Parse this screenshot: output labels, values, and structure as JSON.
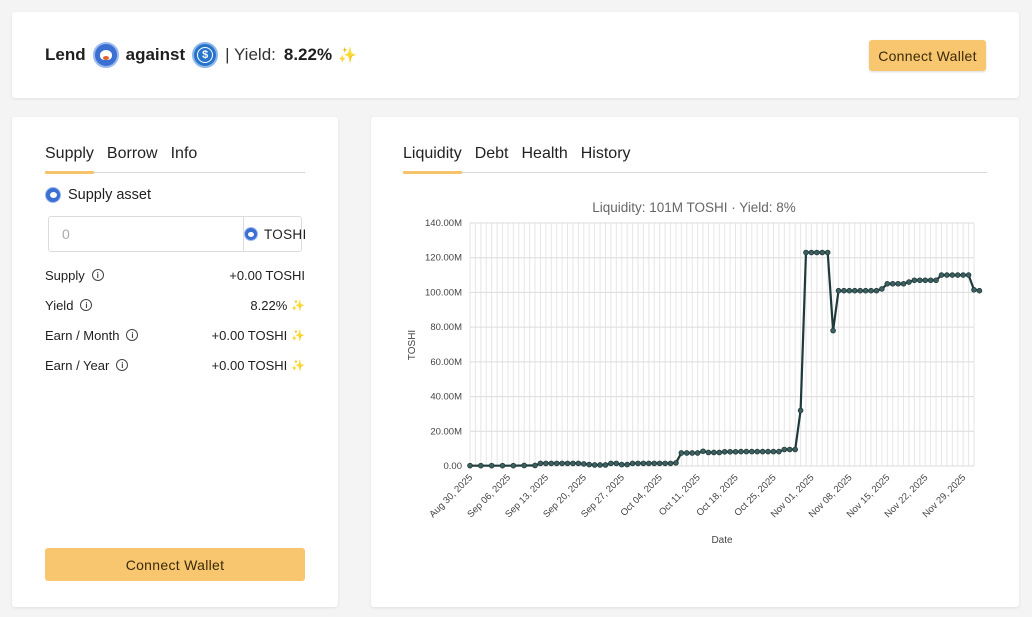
{
  "header": {
    "lend_label": "Lend",
    "against_label": "against",
    "yield_prefix": "| Yield:",
    "yield_value": "8.22%",
    "sparkle": "✨",
    "connect_wallet": "Connect Wallet",
    "asset_icon": "toshi-icon",
    "collateral_icon": "usdc-icon"
  },
  "left_panel": {
    "tabs": [
      {
        "label": "Supply",
        "active": true
      },
      {
        "label": "Borrow",
        "active": false
      },
      {
        "label": "Info",
        "active": false
      }
    ],
    "supply_asset_label": "Supply asset",
    "amount_placeholder": "0",
    "amount_token": "TOSHI",
    "stats": [
      {
        "label": "Supply",
        "value": "+0.00 TOSHI",
        "sparkle": false
      },
      {
        "label": "Yield",
        "value": "8.22%",
        "sparkle": true
      },
      {
        "label": "Earn / Month",
        "value": "+0.00 TOSHI",
        "sparkle": true
      },
      {
        "label": "Earn / Year",
        "value": "+0.00 TOSHI",
        "sparkle": true
      }
    ],
    "connect_wallet": "Connect Wallet"
  },
  "right_panel": {
    "tabs": [
      {
        "label": "Liquidity",
        "active": true
      },
      {
        "label": "Debt",
        "active": false
      },
      {
        "label": "Health",
        "active": false
      },
      {
        "label": "History",
        "active": false
      }
    ]
  },
  "colors": {
    "accent": "#f8c66f",
    "line": "#1f3a3a"
  },
  "chart_data": {
    "type": "line",
    "title": "Liquidity: 101M TOSHI · Yield: 8%",
    "xlabel": "Date",
    "ylabel": "TOSHI",
    "ylim": [
      0,
      140
    ],
    "y_ticks": [
      "0.00",
      "20.00M",
      "40.00M",
      "60.00M",
      "80.00M",
      "100.00M",
      "120.00M",
      "140.00M"
    ],
    "x_ticks": [
      "Aug 30, 2025",
      "Sep 06, 2025",
      "Sep 13, 2025",
      "Sep 20, 2025",
      "Sep 27, 2025",
      "Oct 04, 2025",
      "Oct 11, 2025",
      "Oct 18, 2025",
      "Oct 25, 2025",
      "Nov 01, 2025",
      "Nov 08, 2025",
      "Nov 15, 2025",
      "Nov 22, 2025",
      "Nov 29, 2025"
    ],
    "x_range": [
      "2025-08-30",
      "2025-12-01"
    ],
    "grid": true,
    "series": [
      {
        "unit": "M TOSHI",
        "points": [
          [
            "2025-08-30",
            0.2
          ],
          [
            "2025-09-01",
            0.2
          ],
          [
            "2025-09-03",
            0.2
          ],
          [
            "2025-09-05",
            0.2
          ],
          [
            "2025-09-07",
            0.2
          ],
          [
            "2025-09-09",
            0.3
          ],
          [
            "2025-09-11",
            0.3
          ],
          [
            "2025-09-12",
            1.5
          ],
          [
            "2025-09-13",
            1.5
          ],
          [
            "2025-09-14",
            1.5
          ],
          [
            "2025-09-15",
            1.5
          ],
          [
            "2025-09-16",
            1.5
          ],
          [
            "2025-09-17",
            1.5
          ],
          [
            "2025-09-18",
            1.5
          ],
          [
            "2025-09-19",
            1.5
          ],
          [
            "2025-09-20",
            1.2
          ],
          [
            "2025-09-21",
            0.8
          ],
          [
            "2025-09-22",
            0.6
          ],
          [
            "2025-09-23",
            0.6
          ],
          [
            "2025-09-24",
            0.6
          ],
          [
            "2025-09-25",
            1.5
          ],
          [
            "2025-09-26",
            1.5
          ],
          [
            "2025-09-27",
            0.8
          ],
          [
            "2025-09-28",
            0.8
          ],
          [
            "2025-09-29",
            1.5
          ],
          [
            "2025-09-30",
            1.5
          ],
          [
            "2025-10-01",
            1.5
          ],
          [
            "2025-10-02",
            1.5
          ],
          [
            "2025-10-03",
            1.5
          ],
          [
            "2025-10-04",
            1.5
          ],
          [
            "2025-10-05",
            1.5
          ],
          [
            "2025-10-06",
            1.5
          ],
          [
            "2025-10-07",
            1.8
          ],
          [
            "2025-10-08",
            7.5
          ],
          [
            "2025-10-09",
            7.5
          ],
          [
            "2025-10-10",
            7.5
          ],
          [
            "2025-10-11",
            7.5
          ],
          [
            "2025-10-12",
            8.5
          ],
          [
            "2025-10-13",
            7.8
          ],
          [
            "2025-10-14",
            7.8
          ],
          [
            "2025-10-15",
            7.8
          ],
          [
            "2025-10-16",
            8.2
          ],
          [
            "2025-10-17",
            8.2
          ],
          [
            "2025-10-18",
            8.2
          ],
          [
            "2025-10-19",
            8.3
          ],
          [
            "2025-10-20",
            8.3
          ],
          [
            "2025-10-21",
            8.3
          ],
          [
            "2025-10-22",
            8.3
          ],
          [
            "2025-10-23",
            8.3
          ],
          [
            "2025-10-24",
            8.3
          ],
          [
            "2025-10-25",
            8.3
          ],
          [
            "2025-10-26",
            8.3
          ],
          [
            "2025-10-27",
            9.5
          ],
          [
            "2025-10-28",
            9.5
          ],
          [
            "2025-10-29",
            9.5
          ],
          [
            "2025-10-30",
            32
          ],
          [
            "2025-10-31",
            123
          ],
          [
            "2025-11-01",
            123
          ],
          [
            "2025-11-02",
            123
          ],
          [
            "2025-11-03",
            123
          ],
          [
            "2025-11-04",
            123
          ],
          [
            "2025-11-05",
            78
          ],
          [
            "2025-11-06",
            101
          ],
          [
            "2025-11-07",
            101
          ],
          [
            "2025-11-08",
            101
          ],
          [
            "2025-11-09",
            101
          ],
          [
            "2025-11-10",
            101
          ],
          [
            "2025-11-11",
            101
          ],
          [
            "2025-11-12",
            101
          ],
          [
            "2025-11-13",
            101
          ],
          [
            "2025-11-14",
            102
          ],
          [
            "2025-11-15",
            105
          ],
          [
            "2025-11-16",
            105
          ],
          [
            "2025-11-17",
            105
          ],
          [
            "2025-11-18",
            105
          ],
          [
            "2025-11-19",
            106
          ],
          [
            "2025-11-20",
            107
          ],
          [
            "2025-11-21",
            107
          ],
          [
            "2025-11-22",
            107
          ],
          [
            "2025-11-23",
            107
          ],
          [
            "2025-11-24",
            107
          ],
          [
            "2025-11-25",
            110
          ],
          [
            "2025-11-26",
            110
          ],
          [
            "2025-11-27",
            110
          ],
          [
            "2025-11-28",
            110
          ],
          [
            "2025-11-29",
            110
          ],
          [
            "2025-11-30",
            110
          ],
          [
            "2025-12-01",
            101.5
          ],
          [
            "2025-12-02",
            101
          ]
        ]
      }
    ]
  }
}
